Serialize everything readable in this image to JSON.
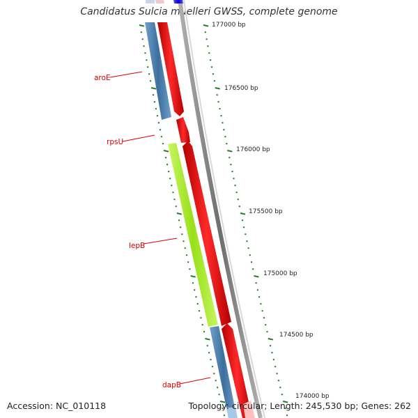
{
  "title": "Candidatus Sulcia muelleri GWSS, complete genome",
  "accession": "Accession: NC_010118",
  "summary": "Topology: circular; Length: 245,530 bp; Genes: 262",
  "colors": {
    "backbone": "#888888",
    "tick": "#1e7b1e",
    "label": "#dd0000",
    "forward": "#ee0000",
    "reverse": "#4682b4",
    "lepB": "#aaee22",
    "top_gene": "#0000ee"
  },
  "bp_labels": [
    {
      "text": "177000 bp",
      "pos": 177000
    },
    {
      "text": "176500 bp",
      "pos": 176500
    },
    {
      "text": "176000 bp",
      "pos": 176000
    },
    {
      "text": "175500 bp",
      "pos": 175500
    },
    {
      "text": "175000 bp",
      "pos": 175000
    },
    {
      "text": "174500 bp",
      "pos": 174500
    },
    {
      "text": "174000 bp",
      "pos": 174000
    }
  ],
  "gene_labels": [
    {
      "name": "aroE",
      "text": "aroE"
    },
    {
      "name": "rpsU",
      "text": "rpsU"
    },
    {
      "name": "lepB",
      "text": "lepB"
    },
    {
      "name": "dapB",
      "text": "dapB"
    }
  ]
}
